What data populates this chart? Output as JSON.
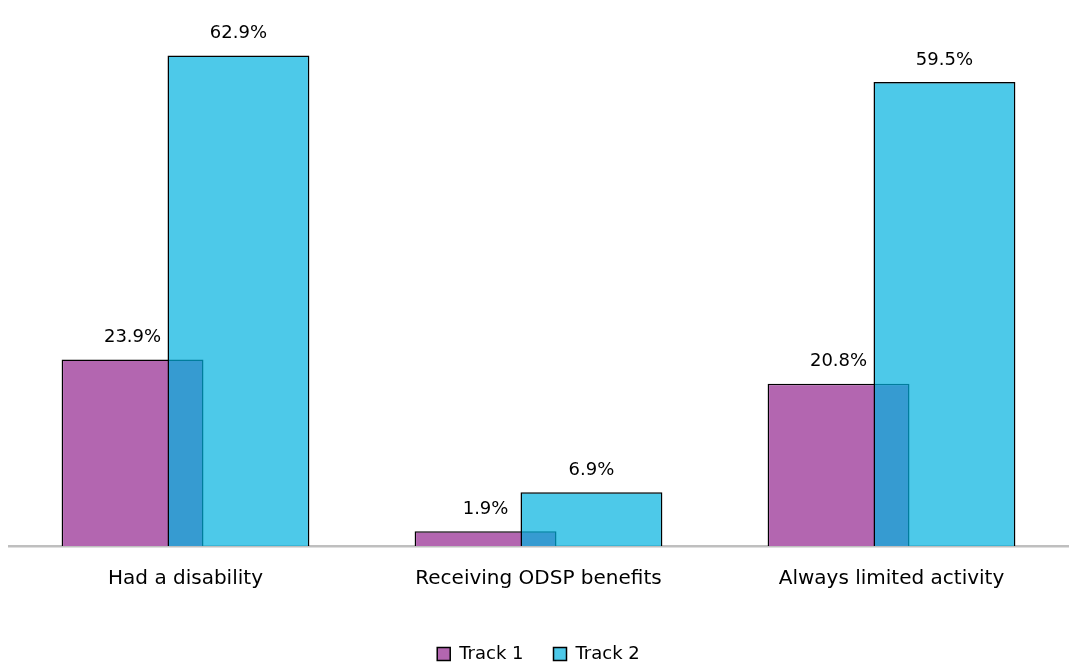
{
  "chart_data": {
    "type": "bar",
    "categories": [
      "Had a disability",
      "Receiving ODSP benefits",
      "Always limited activity"
    ],
    "series": [
      {
        "name": "Track 1",
        "color": "#b366b0",
        "values": [
          23.9,
          1.9,
          20.8
        ],
        "value_labels": [
          "23.9%",
          "1.9%",
          "20.8%"
        ]
      },
      {
        "name": "Track 2",
        "color": "#4dc9e9",
        "values": [
          62.9,
          6.9,
          59.5
        ],
        "value_labels": [
          "62.9%",
          "6.9%",
          "59.5%"
        ]
      }
    ],
    "legend": "bottom",
    "grid": false
  }
}
